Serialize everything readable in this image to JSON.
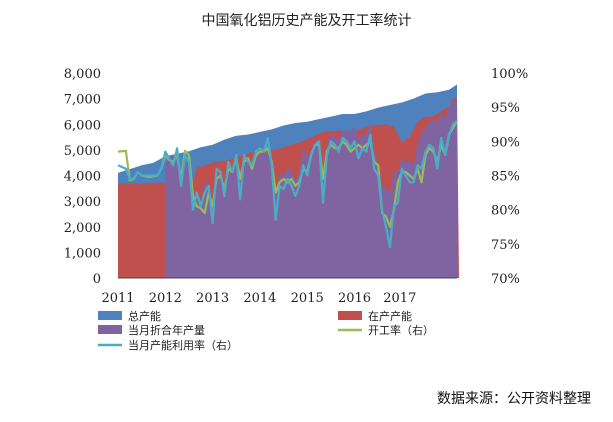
{
  "title": "中国氧化铝历史产能及开工率统计",
  "source_note": "数据来源：公开资料整理",
  "chart_data": {
    "type": "area",
    "x_labels": [
      "2011",
      "2012",
      "2013",
      "2014",
      "2015",
      "2016",
      "2017"
    ],
    "ylim_left": [
      0,
      8000
    ],
    "yticks_left": [
      "0",
      "1,000",
      "2,000",
      "3,000",
      "4,000",
      "5,000",
      "6,000",
      "7,000",
      "8,000"
    ],
    "ylim_right": [
      70,
      100
    ],
    "yticks_right": [
      "70%",
      "75%",
      "80%",
      "85%",
      "90%",
      "95%",
      "100%"
    ],
    "legend": [
      {
        "key": "total",
        "label": "总产能",
        "color": "#4f81bd",
        "marker": "rect"
      },
      {
        "key": "inprod",
        "label": "在产产能",
        "color": "#c0504d",
        "marker": "rect"
      },
      {
        "key": "monthly",
        "label": "当月折合年产量",
        "color": "#8064a2",
        "marker": "rect"
      },
      {
        "key": "oprate",
        "label": "开工率（右）",
        "color": "#9bbb59",
        "marker": "line"
      },
      {
        "key": "util",
        "label": "当月产能利用率（右）",
        "color": "#4bacc6",
        "marker": "line"
      }
    ],
    "series": [
      {
        "key": "total",
        "axis": "left",
        "points": [
          [
            0,
            4100
          ],
          [
            3,
            4250
          ],
          [
            6,
            4400
          ],
          [
            9,
            4500
          ],
          [
            12,
            4750
          ],
          [
            15,
            4850
          ],
          [
            18,
            4950
          ],
          [
            21,
            5100
          ],
          [
            24,
            5200
          ],
          [
            27,
            5400
          ],
          [
            30,
            5550
          ],
          [
            33,
            5600
          ],
          [
            36,
            5700
          ],
          [
            39,
            5800
          ],
          [
            42,
            5950
          ],
          [
            45,
            6050
          ],
          [
            48,
            6100
          ],
          [
            51,
            6200
          ],
          [
            54,
            6300
          ],
          [
            57,
            6400
          ],
          [
            60,
            6400
          ],
          [
            63,
            6500
          ],
          [
            66,
            6650
          ],
          [
            69,
            6750
          ],
          [
            72,
            6850
          ],
          [
            75,
            7000
          ],
          [
            78,
            7200
          ],
          [
            81,
            7250
          ],
          [
            84,
            7350
          ],
          [
            86,
            7550
          ]
        ]
      },
      {
        "key": "inprod",
        "axis": "left",
        "points": [
          [
            0,
            3700
          ],
          [
            3,
            3700
          ],
          [
            6,
            3700
          ],
          [
            9,
            3720
          ],
          [
            12,
            3720
          ],
          [
            12.01,
            0
          ],
          [
            20,
            4300
          ],
          [
            24,
            4500
          ],
          [
            28,
            4600
          ],
          [
            32,
            4800
          ],
          [
            36,
            5000
          ],
          [
            40,
            5000
          ],
          [
            44,
            5200
          ],
          [
            48,
            5400
          ],
          [
            52,
            5700
          ],
          [
            56,
            5750
          ],
          [
            60,
            5700
          ],
          [
            64,
            5950
          ],
          [
            68,
            6000
          ],
          [
            70,
            5900
          ],
          [
            72,
            5300
          ],
          [
            74,
            5500
          ],
          [
            76,
            6100
          ],
          [
            78,
            6300
          ],
          [
            80,
            6300
          ],
          [
            82,
            6500
          ],
          [
            84,
            6700
          ],
          [
            85,
            7000
          ],
          [
            86,
            7000
          ],
          [
            86.5,
            0
          ]
        ]
      },
      {
        "key": "monthly",
        "axis": "left",
        "points": [
          [
            12,
            4500
          ],
          [
            14,
            4800
          ],
          [
            16,
            4100
          ],
          [
            18,
            4600
          ],
          [
            19,
            3200
          ],
          [
            20,
            3400
          ],
          [
            21,
            2800
          ],
          [
            22,
            3800
          ],
          [
            23,
            3500
          ],
          [
            24,
            2300
          ],
          [
            25,
            3700
          ],
          [
            26,
            3900
          ],
          [
            27,
            3300
          ],
          [
            28,
            4200
          ],
          [
            29,
            4000
          ],
          [
            30,
            4600
          ],
          [
            31,
            3700
          ],
          [
            32,
            4700
          ],
          [
            33,
            4500
          ],
          [
            34,
            4400
          ],
          [
            35,
            4700
          ],
          [
            36,
            4900
          ],
          [
            37,
            4800
          ],
          [
            38,
            5000
          ],
          [
            39,
            4300
          ],
          [
            40,
            3100
          ],
          [
            41,
            4100
          ],
          [
            42,
            4000
          ],
          [
            43,
            4300
          ],
          [
            44,
            4200
          ],
          [
            45,
            3800
          ],
          [
            46,
            4100
          ],
          [
            47,
            5100
          ],
          [
            48,
            4700
          ],
          [
            49,
            5000
          ],
          [
            50,
            5300
          ],
          [
            51,
            5400
          ],
          [
            52,
            3700
          ],
          [
            53,
            5200
          ],
          [
            54,
            5600
          ],
          [
            55,
            5500
          ],
          [
            56,
            5400
          ],
          [
            57,
            5700
          ],
          [
            58,
            5800
          ],
          [
            59,
            5700
          ],
          [
            60,
            5900
          ],
          [
            61,
            5400
          ],
          [
            62,
            5600
          ],
          [
            63,
            5600
          ],
          [
            64,
            6100
          ],
          [
            65,
            4900
          ],
          [
            66,
            4500
          ],
          [
            67,
            3700
          ],
          [
            68,
            3500
          ],
          [
            69,
            3300
          ],
          [
            70,
            4200
          ],
          [
            71,
            4100
          ],
          [
            72,
            4700
          ],
          [
            73,
            4500
          ],
          [
            74,
            4600
          ],
          [
            75,
            4400
          ],
          [
            76,
            5300
          ],
          [
            77,
            5600
          ],
          [
            78,
            5900
          ],
          [
            79,
            6100
          ],
          [
            80,
            6200
          ],
          [
            81,
            6000
          ],
          [
            82,
            6500
          ],
          [
            83,
            6200
          ],
          [
            84,
            6700
          ],
          [
            85,
            6900
          ],
          [
            86,
            6900
          ]
        ]
      },
      {
        "key": "oprate",
        "axis": "right",
        "points": [
          [
            0,
            88.5
          ],
          [
            2,
            88.6
          ],
          [
            3,
            84.3
          ],
          [
            4,
            84.5
          ],
          [
            5,
            85.5
          ],
          [
            6,
            85.0
          ],
          [
            8,
            84.8
          ],
          [
            10,
            85.0
          ],
          [
            11,
            86.0
          ],
          [
            12,
            88.0
          ],
          [
            13,
            87.3
          ],
          [
            14,
            87.0
          ],
          [
            15,
            88.0
          ],
          [
            16,
            84.5
          ],
          [
            17,
            88.6
          ],
          [
            18,
            88.0
          ],
          [
            19,
            82.0
          ],
          [
            20,
            80.5
          ],
          [
            21,
            80.2
          ],
          [
            22,
            79.5
          ],
          [
            23,
            82.5
          ],
          [
            24,
            80.5
          ],
          [
            25,
            84.5
          ],
          [
            26,
            85.0
          ],
          [
            27,
            83.0
          ],
          [
            28,
            86.0
          ],
          [
            29,
            85.5
          ],
          [
            30,
            87.5
          ],
          [
            31,
            84.5
          ],
          [
            32,
            87.0
          ],
          [
            33,
            87.5
          ],
          [
            34,
            86.0
          ],
          [
            35,
            88.0
          ],
          [
            36,
            88.5
          ],
          [
            37,
            88.5
          ],
          [
            38,
            89.0
          ],
          [
            39,
            87.0
          ],
          [
            40,
            82.5
          ],
          [
            41,
            84.0
          ],
          [
            42,
            84.5
          ],
          [
            43,
            84.0
          ],
          [
            44,
            84.5
          ],
          [
            45,
            83.5
          ],
          [
            46,
            84.0
          ],
          [
            47,
            86.0
          ],
          [
            48,
            85.5
          ],
          [
            49,
            88.0
          ],
          [
            50,
            89.5
          ],
          [
            51,
            89.5
          ],
          [
            52,
            84.5
          ],
          [
            53,
            88.5
          ],
          [
            54,
            89.5
          ],
          [
            55,
            89.0
          ],
          [
            56,
            89.0
          ],
          [
            57,
            90.0
          ],
          [
            58,
            89.5
          ],
          [
            59,
            88.5
          ],
          [
            60,
            89.0
          ],
          [
            61,
            89.5
          ],
          [
            62,
            89.0
          ],
          [
            63,
            89.5
          ],
          [
            64,
            90.0
          ],
          [
            65,
            87.0
          ],
          [
            66,
            86.5
          ],
          [
            67,
            79.5
          ],
          [
            68,
            79.0
          ],
          [
            69,
            77.5
          ],
          [
            70,
            80.0
          ],
          [
            71,
            84.0
          ],
          [
            72,
            85.5
          ],
          [
            73,
            85.5
          ],
          [
            74,
            85.0
          ],
          [
            75,
            84.5
          ],
          [
            76,
            86.0
          ],
          [
            77,
            84.0
          ],
          [
            78,
            88.0
          ],
          [
            79,
            89.0
          ],
          [
            80,
            88.5
          ],
          [
            81,
            87.0
          ],
          [
            82,
            89.5
          ],
          [
            83,
            88.0
          ],
          [
            84,
            91.0
          ],
          [
            85,
            92.0
          ],
          [
            86,
            93.0
          ]
        ]
      },
      {
        "key": "util",
        "axis": "right",
        "points": [
          [
            0,
            86.5
          ],
          [
            2,
            86.0
          ],
          [
            3,
            84.5
          ],
          [
            4,
            84.5
          ],
          [
            5,
            85.5
          ],
          [
            6,
            85.0
          ],
          [
            8,
            85.0
          ],
          [
            10,
            85.0
          ],
          [
            11,
            86.0
          ],
          [
            12,
            88.5
          ],
          [
            13,
            87.5
          ],
          [
            14,
            86.5
          ],
          [
            15,
            89.0
          ],
          [
            16,
            83.5
          ],
          [
            17,
            88.0
          ],
          [
            18,
            87.0
          ],
          [
            19,
            80.0
          ],
          [
            20,
            82.5
          ],
          [
            21,
            80.5
          ],
          [
            22,
            82.5
          ],
          [
            23,
            83.5
          ],
          [
            24,
            78.0
          ],
          [
            25,
            86.0
          ],
          [
            26,
            85.5
          ],
          [
            27,
            82.0
          ],
          [
            28,
            87.0
          ],
          [
            29,
            85.5
          ],
          [
            30,
            88.0
          ],
          [
            31,
            81.5
          ],
          [
            32,
            88.0
          ],
          [
            33,
            87.0
          ],
          [
            34,
            86.5
          ],
          [
            35,
            88.5
          ],
          [
            36,
            89.0
          ],
          [
            37,
            88.5
          ],
          [
            38,
            90.5
          ],
          [
            39,
            86.5
          ],
          [
            40,
            78.5
          ],
          [
            41,
            83.5
          ],
          [
            42,
            83.0
          ],
          [
            43,
            84.5
          ],
          [
            44,
            83.5
          ],
          [
            45,
            82.0
          ],
          [
            46,
            83.5
          ],
          [
            47,
            86.5
          ],
          [
            48,
            85.0
          ],
          [
            49,
            88.0
          ],
          [
            50,
            89.5
          ],
          [
            51,
            90.0
          ],
          [
            52,
            81.0
          ],
          [
            53,
            88.0
          ],
          [
            54,
            90.0
          ],
          [
            55,
            89.5
          ],
          [
            56,
            88.5
          ],
          [
            57,
            90.5
          ],
          [
            58,
            90.0
          ],
          [
            59,
            89.0
          ],
          [
            60,
            90.0
          ],
          [
            61,
            87.5
          ],
          [
            62,
            89.0
          ],
          [
            63,
            88.5
          ],
          [
            64,
            91.0
          ],
          [
            65,
            86.0
          ],
          [
            66,
            85.0
          ],
          [
            67,
            80.0
          ],
          [
            68,
            77.5
          ],
          [
            69,
            74.5
          ],
          [
            70,
            80.5
          ],
          [
            71,
            81.0
          ],
          [
            72,
            86.0
          ],
          [
            73,
            85.0
          ],
          [
            74,
            84.0
          ],
          [
            75,
            84.0
          ],
          [
            76,
            86.5
          ],
          [
            77,
            86.0
          ],
          [
            78,
            88.5
          ],
          [
            79,
            89.5
          ],
          [
            80,
            89.0
          ],
          [
            81,
            86.0
          ],
          [
            82,
            90.5
          ],
          [
            83,
            88.0
          ],
          [
            84,
            91.0
          ],
          [
            85,
            92.5
          ],
          [
            86,
            93.0
          ]
        ]
      }
    ]
  }
}
